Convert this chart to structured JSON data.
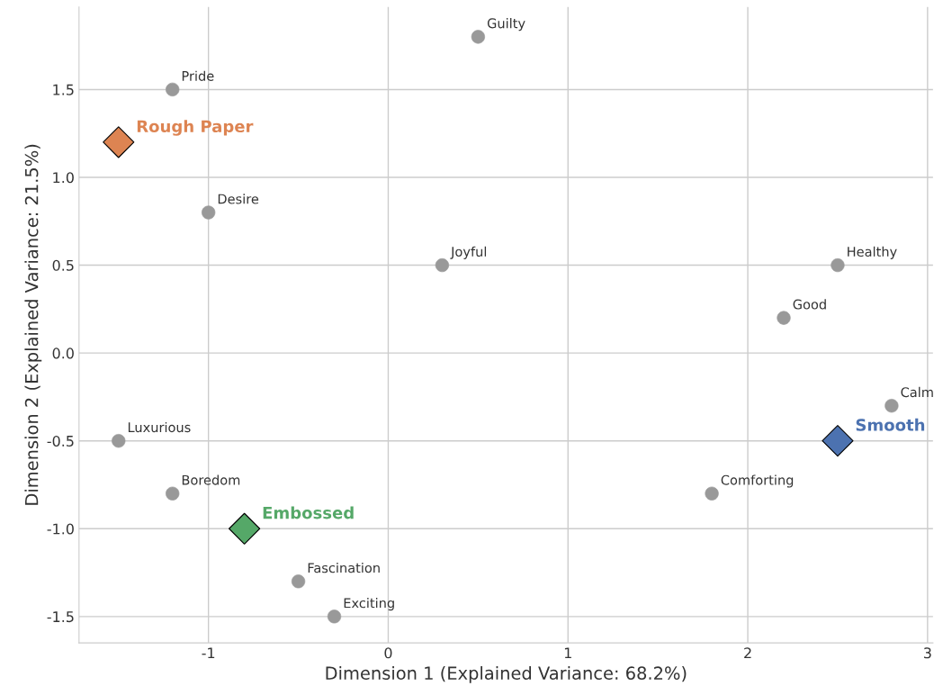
{
  "chart_data": {
    "type": "scatter",
    "xlabel": "Dimension 1 (Explained Variance: 68.2%)",
    "ylabel": "Dimension 2 (Explained Variance: 21.5%)",
    "xlim": [
      -1.72,
      3.03
    ],
    "ylim": [
      -1.65,
      1.97
    ],
    "xticks": [
      -1,
      0,
      1,
      2,
      3
    ],
    "yticks": [
      -1.5,
      {
        "value": -1.0,
        "label": "-1.0"
      },
      -0.5,
      {
        "value": 0.0,
        "label": "0.0"
      },
      0.5,
      {
        "value": 1.0,
        "label": "1.0"
      },
      1.5
    ],
    "grid": true,
    "legend": false,
    "series": [
      {
        "color": "#999999",
        "marker": "circle",
        "x": [
          0.5,
          -1.2,
          -1.0,
          0.3,
          2.5,
          2.2,
          2.8,
          -1.5,
          -1.2,
          1.8,
          -0.5,
          -0.3
        ],
        "values": [
          1.8,
          1.5,
          0.8,
          0.5,
          0.5,
          0.2,
          -0.3,
          -0.5,
          -0.8,
          -0.8,
          -1.3,
          -1.5
        ],
        "value_labels": [
          "Guilty",
          "Pride",
          "Desire",
          "Joyful",
          "Healthy",
          "Good",
          "Calm",
          "Luxurious",
          "Boredom",
          "Comforting",
          "Fascination",
          "Exciting"
        ]
      },
      {
        "name": "Rough Paper",
        "color": "#dd8452",
        "marker": "diamond",
        "x": [
          -1.5
        ],
        "values": [
          1.2
        ]
      },
      {
        "name": "Embossed",
        "color": "#55a868",
        "marker": "diamond",
        "x": [
          -0.8
        ],
        "values": [
          -1.0
        ]
      },
      {
        "name": "Smooth",
        "color": "#4c72b0",
        "marker": "diamond",
        "x": [
          2.5
        ],
        "values": [
          -0.5
        ]
      }
    ]
  }
}
